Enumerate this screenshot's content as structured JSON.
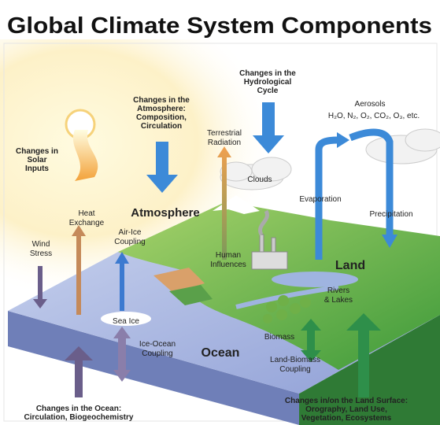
{
  "title": "Global Climate System Components",
  "labels": [
    {
      "lines": [
        "Changes in the",
        "Atmosphere:",
        "Composition,",
        "Circulation"
      ]
    },
    {
      "lines": [
        "Changes in the",
        "Hydrological",
        "Cycle"
      ]
    },
    {
      "lines": [
        "Aerosols"
      ]
    },
    {
      "lines": [
        "H₂O, N₂, O₂, CO₂, O₃, etc."
      ]
    },
    {
      "lines": [
        "Changes in",
        "Solar",
        "Inputs"
      ]
    },
    {
      "lines": [
        "Terrestrial",
        "Radiation"
      ]
    },
    {
      "lines": [
        "Clouds"
      ]
    },
    {
      "lines": [
        "Evaporation"
      ]
    },
    {
      "lines": [
        "Precipitation"
      ]
    },
    {
      "lines": [
        "Heat",
        "Exchange"
      ]
    },
    {
      "lines": [
        "Atmosphere"
      ]
    },
    {
      "lines": [
        "Wind",
        "Stress"
      ]
    },
    {
      "lines": [
        "Air-Ice",
        "Coupling"
      ]
    },
    {
      "lines": [
        "Human",
        "Influences"
      ]
    },
    {
      "lines": [
        "Land"
      ]
    },
    {
      "lines": [
        "Rivers",
        "& Lakes"
      ]
    },
    {
      "lines": [
        "Sea Ice"
      ]
    },
    {
      "lines": [
        "Biomass"
      ]
    },
    {
      "lines": [
        "Ice-Ocean",
        "Coupling"
      ]
    },
    {
      "lines": [
        "Ocean"
      ]
    },
    {
      "lines": [
        "Land-Biomass",
        "Coupling"
      ]
    },
    {
      "lines": [
        "Changes in the Ocean:",
        "Circulation, Biogeochemistry"
      ]
    },
    {
      "lines": [
        "Changes in/on the Land Surface:",
        "Orography, Land Use,",
        "Vegetation, Ecosystems"
      ]
    }
  ]
}
